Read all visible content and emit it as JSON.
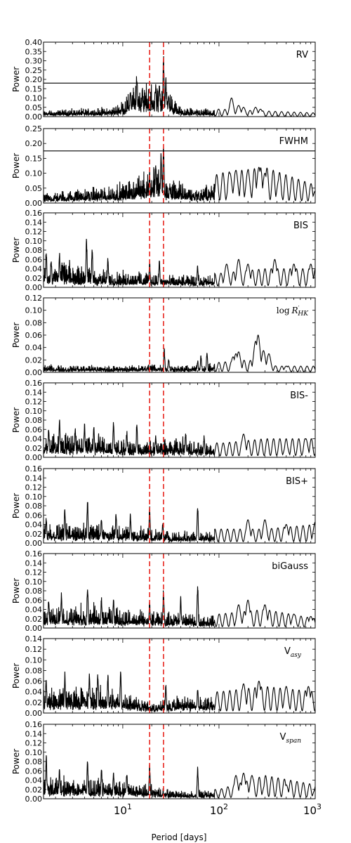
{
  "chart_data": {
    "type": "line",
    "xlabel": "Period [days]",
    "x_scale": "log",
    "xlim": [
      1.5,
      1000
    ],
    "x_ticks": [
      {
        "base": "10",
        "exp": "1",
        "value": 10
      },
      {
        "base": "10",
        "exp": "2",
        "value": 100
      },
      {
        "base": "10",
        "exp": "3",
        "value": 1000
      }
    ],
    "vertical_markers": {
      "color": "#e8261f",
      "style": "dashed",
      "periods": [
        19,
        26.5
      ]
    },
    "line_color": "#000000",
    "panels": [
      {
        "label": "RV",
        "label_sub": "",
        "label_style": "sans",
        "ylabel": "Power",
        "ylim": [
          0,
          0.4
        ],
        "yticks": [
          "0.00",
          "0.05",
          "0.10",
          "0.15",
          "0.20",
          "0.25",
          "0.30",
          "0.35",
          "0.40"
        ],
        "threshold": 0.18,
        "peaks": [
          [
            14,
            0.23
          ],
          [
            12,
            0.15
          ],
          [
            16,
            0.16
          ],
          [
            22,
            0.18
          ],
          [
            24,
            0.2
          ],
          [
            26.5,
            0.35
          ],
          [
            28,
            0.24
          ],
          [
            30,
            0.14
          ],
          [
            135,
            0.1
          ],
          [
            160,
            0.06
          ],
          [
            180,
            0.05
          ],
          [
            240,
            0.05
          ],
          [
            270,
            0.04
          ]
        ],
        "profile": [
          [
            1.5,
            0.02
          ],
          [
            8,
            0.03
          ],
          [
            11,
            0.07
          ],
          [
            14,
            0.12
          ],
          [
            20,
            0.1
          ],
          [
            30,
            0.08
          ],
          [
            40,
            0.03
          ],
          [
            100,
            0.02
          ],
          [
            1000,
            0.01
          ]
        ]
      },
      {
        "label": "FWHM",
        "label_sub": "",
        "label_style": "sans",
        "ylabel": "Power",
        "ylim": [
          0,
          0.25
        ],
        "yticks": [
          "0.00",
          "0.05",
          "0.10",
          "0.15",
          "0.20",
          "0.25"
        ],
        "threshold": 0.175,
        "peaks": [
          [
            26.5,
            0.21
          ],
          [
            25,
            0.18
          ],
          [
            22,
            0.14
          ],
          [
            19,
            0.11
          ],
          [
            130,
            0.1
          ],
          [
            150,
            0.11
          ],
          [
            200,
            0.11
          ],
          [
            260,
            0.12
          ],
          [
            300,
            0.1
          ],
          [
            420,
            0.08
          ],
          [
            1000,
            0.04
          ]
        ],
        "profile": [
          [
            1.5,
            0.02
          ],
          [
            5,
            0.03
          ],
          [
            10,
            0.04
          ],
          [
            15,
            0.06
          ],
          [
            22,
            0.08
          ],
          [
            30,
            0.05
          ],
          [
            60,
            0.03
          ],
          [
            100,
            0.05
          ],
          [
            300,
            0.06
          ],
          [
            1000,
            0.03
          ]
        ]
      },
      {
        "label": "BIS",
        "label_sub": "",
        "label_style": "sans",
        "ylabel": "Power",
        "ylim": [
          0,
          0.16
        ],
        "yticks": [
          "0.00",
          "0.02",
          "0.04",
          "0.06",
          "0.08",
          "0.10",
          "0.12",
          "0.14",
          "0.16"
        ],
        "threshold": null,
        "peaks": [
          [
            1.6,
            0.09
          ],
          [
            1.8,
            0.07
          ],
          [
            2.2,
            0.08
          ],
          [
            4.2,
            0.11
          ],
          [
            4.8,
            0.09
          ],
          [
            7,
            0.07
          ],
          [
            19,
            0.06
          ],
          [
            24,
            0.06
          ],
          [
            60,
            0.05
          ],
          [
            120,
            0.05
          ],
          [
            160,
            0.06
          ],
          [
            200,
            0.05
          ],
          [
            380,
            0.06
          ],
          [
            600,
            0.05
          ],
          [
            900,
            0.05
          ]
        ],
        "profile": [
          [
            1.5,
            0.03
          ],
          [
            3,
            0.03
          ],
          [
            8,
            0.02
          ],
          [
            15,
            0.02
          ],
          [
            30,
            0.015
          ],
          [
            100,
            0.015
          ],
          [
            300,
            0.02
          ],
          [
            1000,
            0.02
          ]
        ]
      },
      {
        "label": "log",
        "label_sub": "HK",
        "label_style": "serif_rhk",
        "ylabel": "Power",
        "ylim": [
          0,
          0.12
        ],
        "yticks": [
          "0.00",
          "0.02",
          "0.04",
          "0.06",
          "0.08",
          "0.10",
          "0.12"
        ],
        "threshold": null,
        "peaks": [
          [
            27,
            0.04
          ],
          [
            30,
            0.025
          ],
          [
            60,
            0.02
          ],
          [
            65,
            0.03
          ],
          [
            75,
            0.035
          ],
          [
            140,
            0.025
          ],
          [
            150,
            0.03
          ],
          [
            160,
            0.033
          ],
          [
            240,
            0.05
          ],
          [
            255,
            0.06
          ],
          [
            290,
            0.035
          ],
          [
            330,
            0.03
          ],
          [
            500,
            0.01
          ]
        ],
        "profile": [
          [
            1.5,
            0.007
          ],
          [
            10,
            0.006
          ],
          [
            20,
            0.008
          ],
          [
            40,
            0.006
          ],
          [
            100,
            0.008
          ],
          [
            200,
            0.01
          ],
          [
            400,
            0.005
          ],
          [
            1000,
            0.005
          ]
        ]
      },
      {
        "label": "BIS-",
        "label_sub": "",
        "label_style": "sans",
        "ylabel": "Power",
        "ylim": [
          0,
          0.16
        ],
        "yticks": [
          "0.00",
          "0.02",
          "0.04",
          "0.06",
          "0.08",
          "0.10",
          "0.12",
          "0.14",
          "0.16"
        ],
        "threshold": null,
        "peaks": [
          [
            1.7,
            0.07
          ],
          [
            2.2,
            0.09
          ],
          [
            3.2,
            0.07
          ],
          [
            4,
            0.08
          ],
          [
            5,
            0.07
          ],
          [
            8,
            0.08
          ],
          [
            11,
            0.06
          ],
          [
            14,
            0.08
          ],
          [
            22,
            0.05
          ],
          [
            45,
            0.06
          ],
          [
            70,
            0.05
          ],
          [
            180,
            0.05
          ],
          [
            500,
            0.03
          ],
          [
            800,
            0.04
          ]
        ],
        "profile": [
          [
            1.5,
            0.03
          ],
          [
            5,
            0.03
          ],
          [
            15,
            0.02
          ],
          [
            40,
            0.025
          ],
          [
            100,
            0.015
          ],
          [
            300,
            0.02
          ],
          [
            1000,
            0.02
          ]
        ]
      },
      {
        "label": "BIS+",
        "label_sub": "",
        "label_style": "sans",
        "ylabel": "Power",
        "ylim": [
          0,
          0.16
        ],
        "yticks": [
          "0.00",
          "0.02",
          "0.04",
          "0.06",
          "0.08",
          "0.10",
          "0.12",
          "0.14",
          "0.16"
        ],
        "threshold": null,
        "peaks": [
          [
            1.6,
            0.06
          ],
          [
            2.5,
            0.08
          ],
          [
            4.3,
            0.1
          ],
          [
            6,
            0.06
          ],
          [
            8.5,
            0.07
          ],
          [
            12,
            0.07
          ],
          [
            19,
            0.08
          ],
          [
            26,
            0.05
          ],
          [
            60,
            0.09
          ],
          [
            200,
            0.05
          ],
          [
            300,
            0.05
          ],
          [
            500,
            0.04
          ],
          [
            1000,
            0.045
          ]
        ],
        "profile": [
          [
            1.5,
            0.025
          ],
          [
            5,
            0.025
          ],
          [
            15,
            0.02
          ],
          [
            30,
            0.015
          ],
          [
            100,
            0.015
          ],
          [
            300,
            0.015
          ],
          [
            1000,
            0.02
          ]
        ]
      },
      {
        "label": "biGauss",
        "label_sub": "",
        "label_style": "sans",
        "ylabel": "Power",
        "ylim": [
          0,
          0.16
        ],
        "yticks": [
          "0.00",
          "0.02",
          "0.04",
          "0.06",
          "0.08",
          "0.10",
          "0.12",
          "0.14",
          "0.16"
        ],
        "threshold": null,
        "peaks": [
          [
            1.7,
            0.07
          ],
          [
            2.3,
            0.08
          ],
          [
            4.3,
            0.1
          ],
          [
            6,
            0.07
          ],
          [
            8,
            0.07
          ],
          [
            19,
            0.06
          ],
          [
            26.5,
            0.09
          ],
          [
            40,
            0.07
          ],
          [
            60,
            0.1
          ],
          [
            160,
            0.05
          ],
          [
            200,
            0.06
          ],
          [
            300,
            0.05
          ],
          [
            600,
            0.03
          ],
          [
            900,
            0.025
          ]
        ],
        "profile": [
          [
            1.5,
            0.025
          ],
          [
            5,
            0.03
          ],
          [
            15,
            0.02
          ],
          [
            40,
            0.02
          ],
          [
            100,
            0.015
          ],
          [
            300,
            0.02
          ],
          [
            1000,
            0.01
          ]
        ]
      },
      {
        "label": "V",
        "label_sub": "asy",
        "label_style": "sans_sub",
        "ylabel": "Power",
        "ylim": [
          0,
          0.14
        ],
        "yticks": [
          "0.00",
          "0.02",
          "0.04",
          "0.06",
          "0.08",
          "0.10",
          "0.12",
          "0.14"
        ],
        "threshold": null,
        "peaks": [
          [
            1.6,
            0.07
          ],
          [
            2.5,
            0.08
          ],
          [
            4.5,
            0.085
          ],
          [
            5.5,
            0.08
          ],
          [
            7,
            0.08
          ],
          [
            9.5,
            0.09
          ],
          [
            28,
            0.06
          ],
          [
            60,
            0.05
          ],
          [
            180,
            0.055
          ],
          [
            260,
            0.06
          ],
          [
            500,
            0.05
          ],
          [
            850,
            0.05
          ]
        ],
        "profile": [
          [
            1.5,
            0.03
          ],
          [
            6,
            0.03
          ],
          [
            12,
            0.025
          ],
          [
            20,
            0.01
          ],
          [
            40,
            0.02
          ],
          [
            100,
            0.02
          ],
          [
            300,
            0.025
          ],
          [
            1000,
            0.02
          ]
        ]
      },
      {
        "label": "V",
        "label_sub": "span",
        "label_style": "sans_sub",
        "ylabel": "Power",
        "ylim": [
          0,
          0.16
        ],
        "yticks": [
          "0.00",
          "0.02",
          "0.04",
          "0.06",
          "0.08",
          "0.10",
          "0.12",
          "0.14",
          "0.16"
        ],
        "threshold": null,
        "peaks": [
          [
            1.6,
            0.1
          ],
          [
            2.2,
            0.07
          ],
          [
            4.3,
            0.09
          ],
          [
            6,
            0.07
          ],
          [
            8,
            0.06
          ],
          [
            11,
            0.06
          ],
          [
            19,
            0.08
          ],
          [
            60,
            0.07
          ],
          [
            150,
            0.05
          ],
          [
            180,
            0.055
          ],
          [
            220,
            0.05
          ],
          [
            300,
            0.03
          ],
          [
            500,
            0.03
          ],
          [
            1000,
            0.02
          ]
        ],
        "profile": [
          [
            1.5,
            0.03
          ],
          [
            5,
            0.025
          ],
          [
            15,
            0.02
          ],
          [
            40,
            0.01
          ],
          [
            100,
            0.01
          ],
          [
            300,
            0.025
          ],
          [
            1000,
            0.015
          ]
        ]
      }
    ]
  }
}
